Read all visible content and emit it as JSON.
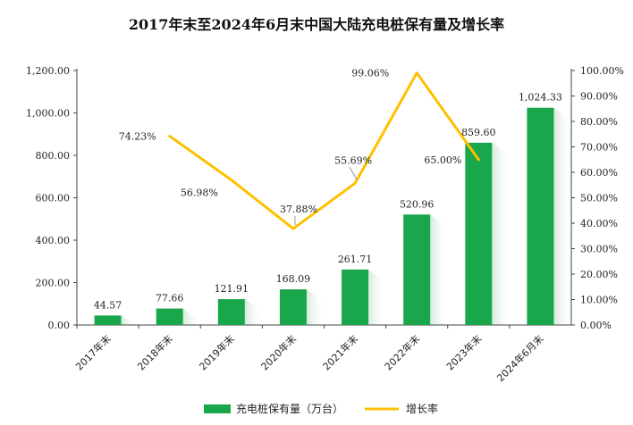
{
  "chart_data": {
    "type": "bar",
    "title": "2017年末至2024年6月末中国大陆充电桩保有量及增长率",
    "categories": [
      "2017年末",
      "2018年末",
      "2019年末",
      "2020年末",
      "2021年末",
      "2022年末",
      "2023年末",
      "2024年6月末"
    ],
    "series": [
      {
        "name": "充电桩保有量（万台）",
        "type": "bar",
        "axis": "left",
        "color": "#1aa64a",
        "values": [
          44.57,
          77.66,
          121.91,
          168.09,
          261.71,
          520.96,
          859.6,
          1024.33
        ],
        "labels": [
          "44.57",
          "77.66",
          "121.91",
          "168.09",
          "261.71",
          "520.96",
          "859.60",
          "1,024.33"
        ]
      },
      {
        "name": "增长率",
        "type": "line",
        "axis": "right",
        "color": "#ffc000",
        "values": [
          null,
          74.23,
          56.98,
          37.88,
          55.69,
          99.06,
          65.0,
          null
        ],
        "labels": [
          "",
          "74.23%",
          "56.98%",
          "37.88%",
          "55.69%",
          "99.06%",
          "65.00%",
          ""
        ]
      }
    ],
    "y_left": {
      "ylim": [
        0,
        1200
      ],
      "ticks": [
        0,
        200,
        400,
        600,
        800,
        1000,
        1200
      ],
      "tick_labels": [
        "0.00",
        "200.00",
        "400.00",
        "600.00",
        "800.00",
        "1,000.00",
        "1,200.00"
      ]
    },
    "y_right": {
      "ylim": [
        0,
        100
      ],
      "ticks": [
        0,
        10,
        20,
        30,
        40,
        50,
        60,
        70,
        80,
        90,
        100
      ],
      "tick_labels": [
        "0.00%",
        "10.00%",
        "20.00%",
        "30.00%",
        "40.00%",
        "50.00%",
        "60.00%",
        "70.00%",
        "80.00%",
        "90.00%",
        "100.00%"
      ]
    },
    "grid": false,
    "legend": "bottom"
  }
}
